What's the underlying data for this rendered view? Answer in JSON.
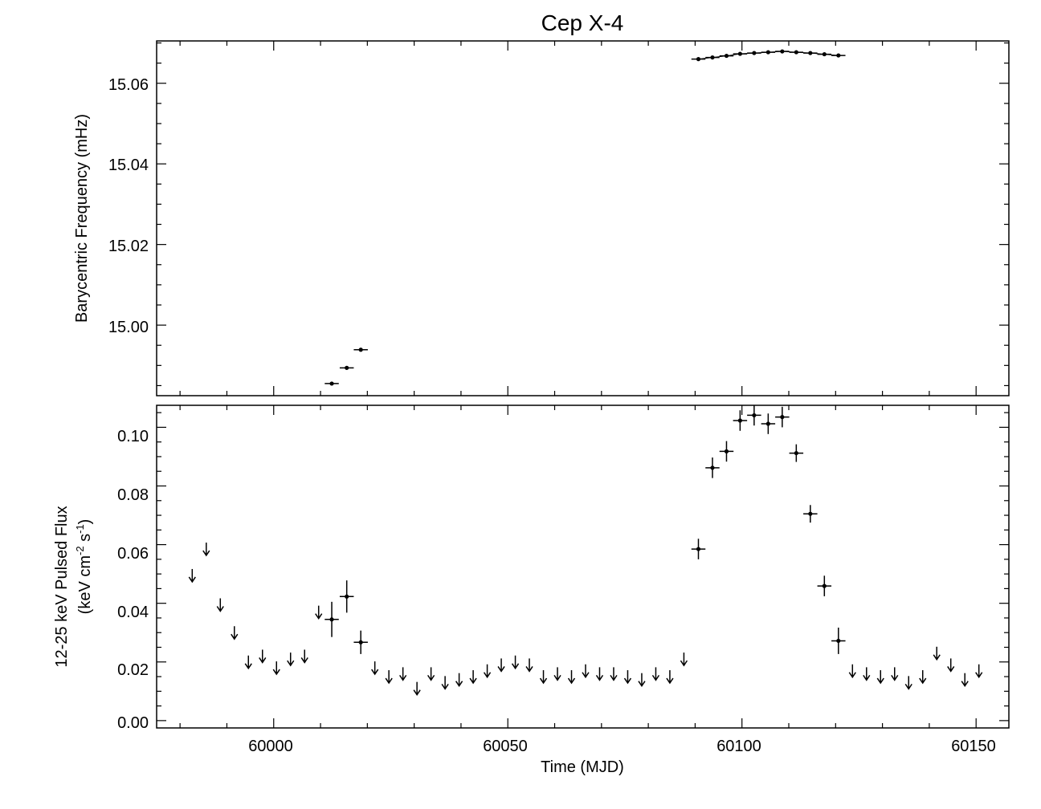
{
  "chart_data": [
    {
      "type": "scatter",
      "title": "Cep X-4",
      "xlabel": "",
      "ylabel": "Barycentric Frequency (mHz)",
      "xlim": [
        59975,
        60157
      ],
      "ylim": [
        14.9825,
        15.0705
      ],
      "y_ticks": [
        "15.00",
        "15.02",
        "15.04",
        "15.06"
      ],
      "series": [
        {
          "x": [
            60012.4,
            60015.6,
            60018.6
          ],
          "y": [
            14.9855,
            14.9894,
            14.9939
          ],
          "xerr": 1.5
        },
        {
          "x": [
            60090.7,
            60093.7,
            60096.7,
            60099.6,
            60102.6,
            60105.6,
            60108.6,
            60111.6,
            60114.6,
            60117.6,
            60120.6
          ],
          "y": [
            15.066,
            15.0664,
            15.0668,
            15.0673,
            15.0675,
            15.0677,
            15.0679,
            15.0677,
            15.0675,
            15.0672,
            15.0669
          ],
          "xerr": 1.5,
          "model_curve": true
        }
      ]
    },
    {
      "type": "scatter",
      "xlabel": "Time (MJD)",
      "ylabel": "12-25 keV Pulsed Flux",
      "ylabel2_main": "(keV cm",
      "ylabel2_exp1": "-2",
      "ylabel2_mid": " s",
      "ylabel2_exp2": "-1",
      "ylabel2_end": ")",
      "xlim": [
        59975,
        60157
      ],
      "ylim": [
        -0.0025,
        0.1075
      ],
      "x_ticks": [
        "60000",
        "60050",
        "60100",
        "60150"
      ],
      "y_ticks": [
        "0.00",
        "0.02",
        "0.04",
        "0.06",
        "0.08",
        "0.10"
      ],
      "detections": {
        "x": [
          60012.4,
          60015.6,
          60018.6,
          60090.7,
          60093.7,
          60096.7,
          60099.6,
          60102.6,
          60105.6,
          60108.6,
          60111.6,
          60114.6,
          60117.6,
          60120.6
        ],
        "y": [
          0.0345,
          0.0423,
          0.0267,
          0.0585,
          0.0862,
          0.0918,
          0.1023,
          0.1041,
          0.1012,
          0.1035,
          0.0912,
          0.0705,
          0.0459,
          0.0272
        ],
        "yerr": [
          0.006,
          0.0055,
          0.004,
          0.0035,
          0.0035,
          0.0035,
          0.0035,
          0.0035,
          0.0035,
          0.0035,
          0.003,
          0.003,
          0.0035,
          0.0045
        ],
        "xerr": 1.5
      },
      "upper_limits": {
        "x": [
          59982.6,
          59985.6,
          59988.6,
          59991.6,
          59994.6,
          59997.6,
          60000.6,
          60003.6,
          60006.6,
          60009.6,
          60021.6,
          60024.6,
          60027.6,
          60030.6,
          60033.6,
          60036.6,
          60039.6,
          60042.6,
          60045.6,
          60048.6,
          60051.6,
          60054.6,
          60057.6,
          60060.6,
          60063.6,
          60066.6,
          60069.6,
          60072.6,
          60075.6,
          60078.6,
          60081.6,
          60084.6,
          60087.6,
          60123.6,
          60126.6,
          60129.6,
          60132.6,
          60135.6,
          60138.6,
          60141.6,
          60144.6,
          60147.6,
          60150.6
        ],
        "y": [
          0.0495,
          0.0585,
          0.0395,
          0.03,
          0.02,
          0.022,
          0.018,
          0.021,
          0.022,
          0.037,
          0.018,
          0.015,
          0.016,
          0.011,
          0.016,
          0.013,
          0.014,
          0.015,
          0.017,
          0.019,
          0.02,
          0.019,
          0.015,
          0.016,
          0.015,
          0.017,
          0.016,
          0.016,
          0.015,
          0.014,
          0.016,
          0.015,
          0.021,
          0.017,
          0.016,
          0.015,
          0.016,
          0.013,
          0.015,
          0.023,
          0.019,
          0.014,
          0.017
        ]
      }
    }
  ]
}
